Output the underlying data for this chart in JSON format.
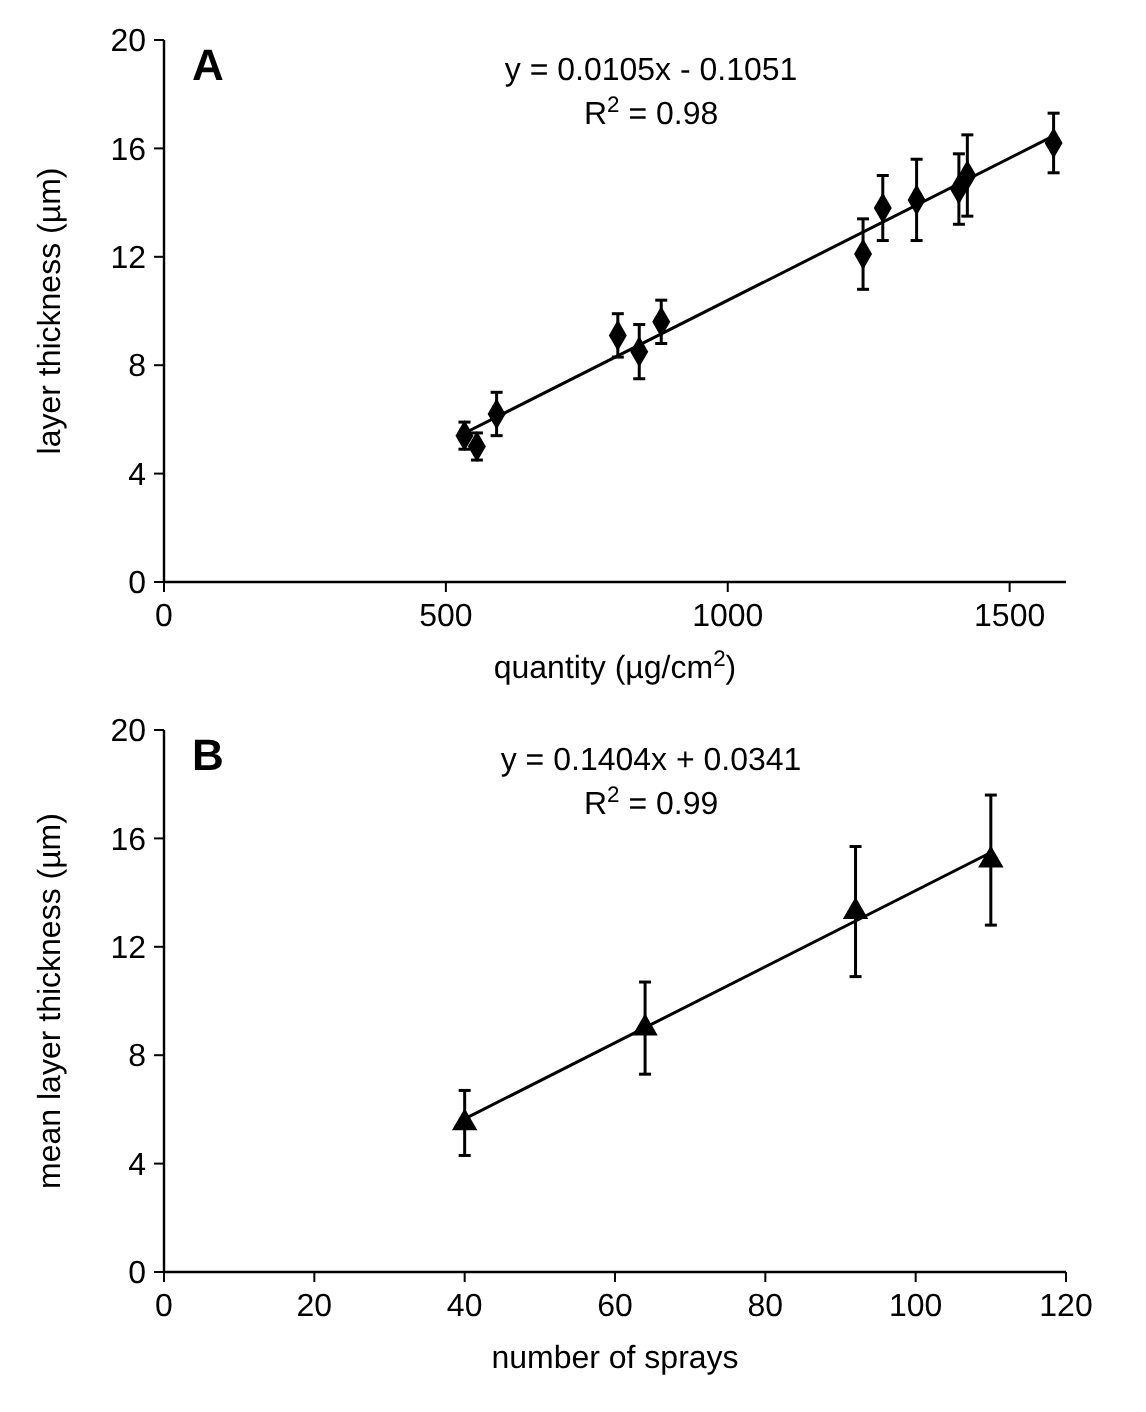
{
  "chart_data": [
    {
      "type": "scatter",
      "annotations": [
        "A",
        "y = 0.0105x - 0.1051",
        "R$^{2}$ = 0.98"
      ],
      "xlabel": "quantity (µg/cm$^{2}$)",
      "ylabel": "layer thickness (µm)",
      "xlim": [
        0,
        1600
      ],
      "xticks": [
        0,
        500,
        1000,
        1500
      ],
      "ylim": [
        0,
        20
      ],
      "yticks": [
        0,
        4,
        8,
        12,
        16,
        20
      ],
      "grid": false,
      "series": [
        {
          "color": "#000000",
          "marker": "diamond",
          "x": [
            533,
            555,
            590,
            805,
            843,
            882,
            1240,
            1275,
            1335,
            1410,
            1425,
            1578
          ],
          "values": [
            5.4,
            5.0,
            6.2,
            9.1,
            8.5,
            9.6,
            12.1,
            13.8,
            14.1,
            14.5,
            15.0,
            16.2
          ],
          "errors": [
            0.5,
            0.5,
            0.8,
            0.8,
            1.0,
            0.8,
            1.3,
            1.2,
            1.5,
            1.3,
            1.5,
            1.1
          ]
        },
        {
          "type": "line",
          "color": "#000000",
          "x": [
            530,
            1578
          ],
          "values": [
            5.46,
            16.46
          ]
        }
      ]
    },
    {
      "type": "scatter",
      "annotations": [
        "B",
        "y = 0.1404x + 0.0341",
        "R$^{2}$ = 0.99"
      ],
      "xlabel": "number of sprays",
      "ylabel": "mean layer thickness (µm)",
      "xlim": [
        0,
        120
      ],
      "xticks": [
        0,
        20,
        40,
        60,
        80,
        100,
        120
      ],
      "ylim": [
        0,
        20
      ],
      "yticks": [
        0,
        4,
        8,
        12,
        16,
        20
      ],
      "grid": false,
      "series": [
        {
          "color": "#000000",
          "marker": "triangle",
          "x": [
            40,
            64,
            92,
            110
          ],
          "values": [
            5.5,
            9.0,
            13.3,
            15.2
          ],
          "errors": [
            1.2,
            1.7,
            2.4,
            2.4
          ]
        },
        {
          "type": "line",
          "color": "#000000",
          "x": [
            40,
            110
          ],
          "values": [
            5.65,
            15.48
          ]
        }
      ]
    }
  ]
}
